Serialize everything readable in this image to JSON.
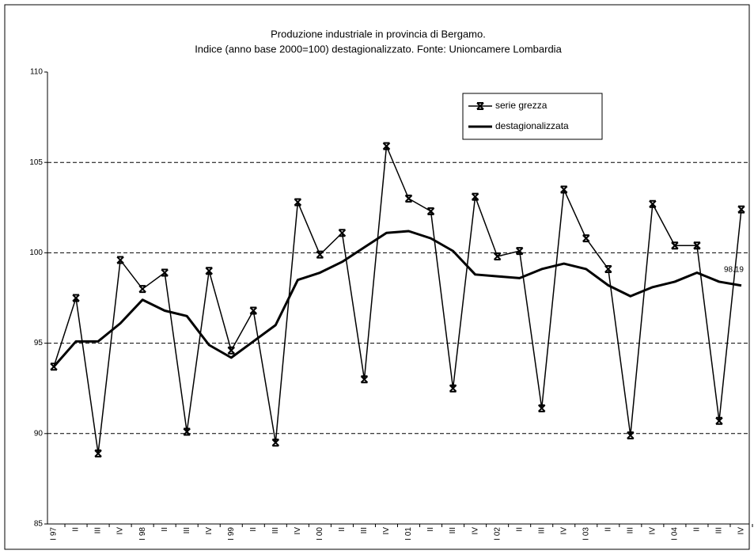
{
  "chart_data": {
    "type": "line",
    "title": "Produzione industriale in provincia di Bergamo.",
    "subtitle": "Indice (anno base 2000=100) destagionalizzato. Fonte: Unioncamere Lombardia",
    "categories": [
      "I 97",
      "II",
      "III",
      "IV",
      "I 98",
      "II",
      "III",
      "IV",
      "I 99",
      "II",
      "III",
      "IV",
      "I 00",
      "II",
      "III",
      "IV",
      "I 01",
      "II",
      "III",
      "IV",
      "I 02",
      "II",
      "III",
      "IV",
      "I 03",
      "II",
      "III",
      "IV",
      "I 04",
      "II",
      "III",
      "IV"
    ],
    "series": [
      {
        "name": "serie grezza",
        "color": "#000000",
        "marker": true,
        "values": [
          93.7,
          97.5,
          88.9,
          99.6,
          98.0,
          98.9,
          90.1,
          99.0,
          94.6,
          96.8,
          89.5,
          102.8,
          99.9,
          101.1,
          93.0,
          105.9,
          103.0,
          102.3,
          92.5,
          103.1,
          99.8,
          100.1,
          91.4,
          103.5,
          100.8,
          99.1,
          89.9,
          102.7,
          100.4,
          100.4,
          90.7,
          102.4
        ]
      },
      {
        "name": "destagionalizzata",
        "color": "#000000",
        "marker": false,
        "values": [
          93.7,
          95.1,
          95.1,
          96.1,
          97.4,
          96.8,
          96.5,
          94.9,
          94.2,
          95.1,
          96.0,
          98.5,
          98.9,
          99.5,
          100.3,
          101.1,
          101.2,
          100.8,
          100.1,
          98.8,
          98.7,
          98.6,
          99.1,
          99.4,
          99.1,
          98.2,
          97.6,
          98.1,
          98.4,
          98.9,
          98.4,
          98.19
        ]
      }
    ],
    "annotation": "98.19",
    "ylim": [
      85,
      110
    ],
    "yticks": [
      85,
      90,
      95,
      100,
      105,
      110
    ],
    "grid": true
  }
}
